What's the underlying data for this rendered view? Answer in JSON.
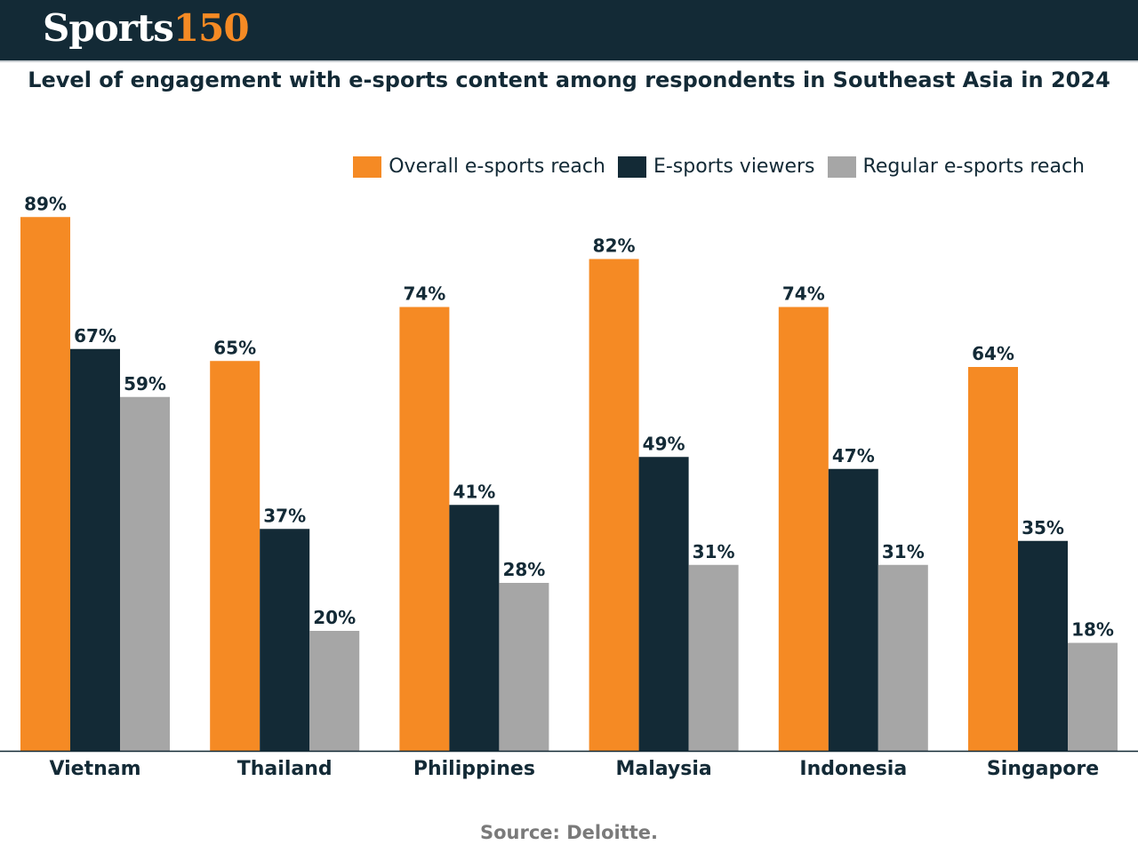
{
  "header": {
    "logo_part1": "Sports",
    "logo_part2": "150"
  },
  "source": "Source: Deloitte.",
  "colors": {
    "header_bg": "#132a36",
    "overall": "#f58a24",
    "viewers": "#132a36",
    "regular": "#a6a6a6"
  },
  "chart_data": {
    "type": "bar",
    "title": "Level of engagement with e-sports content among respondents in Southeast Asia in 2024",
    "xlabel": "",
    "ylabel": "",
    "ylim": [
      0,
      100
    ],
    "grid": false,
    "legend_position": "top-right",
    "categories": [
      "Vietnam",
      "Thailand",
      "Philippines",
      "Malaysia",
      "Indonesia",
      "Singapore"
    ],
    "series": [
      {
        "name": "Overall e-sports reach",
        "color": "#f58a24",
        "values": [
          89,
          65,
          74,
          82,
          74,
          64
        ]
      },
      {
        "name": "E-sports viewers",
        "color": "#132a36",
        "values": [
          67,
          37,
          41,
          49,
          47,
          35
        ]
      },
      {
        "name": "Regular e-sports reach",
        "color": "#a6a6a6",
        "values": [
          59,
          20,
          28,
          31,
          31,
          18
        ]
      }
    ]
  }
}
